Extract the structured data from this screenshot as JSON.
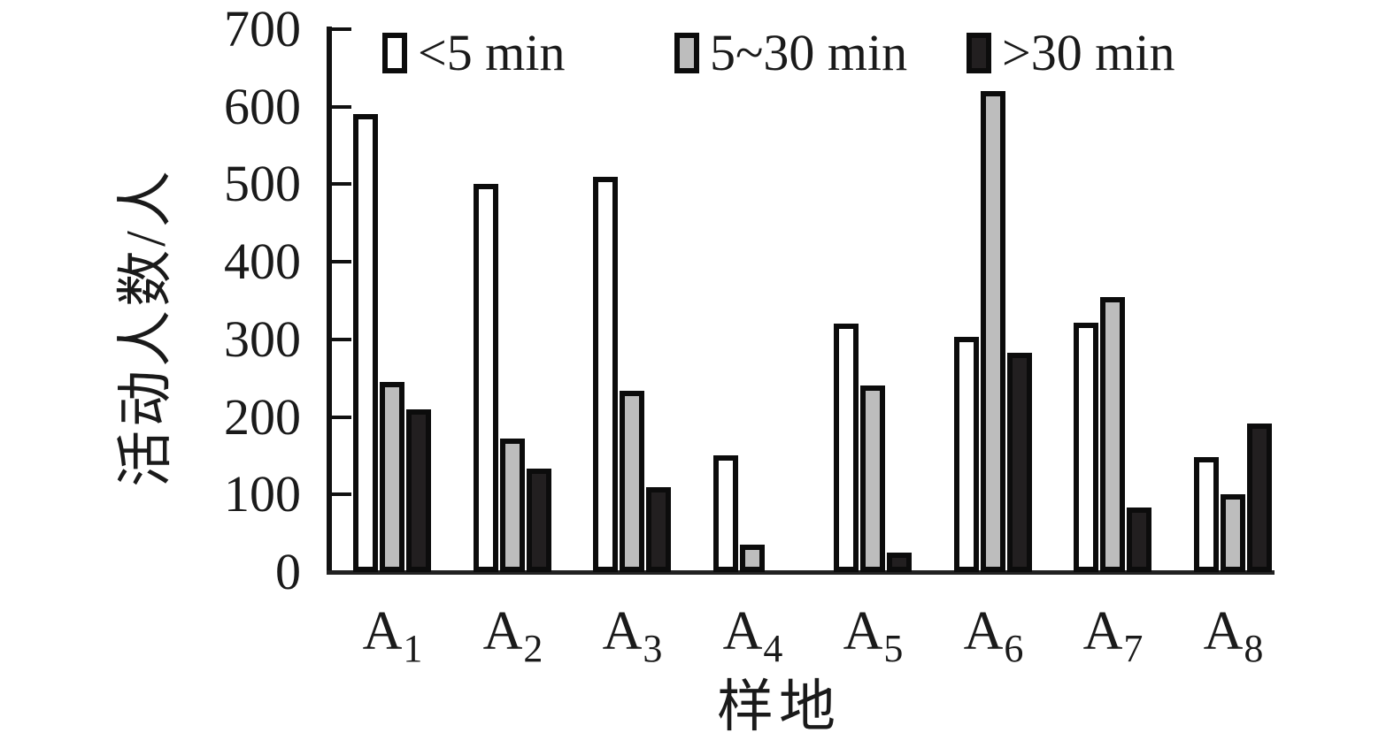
{
  "chart_data": {
    "type": "bar",
    "title": "",
    "categories": [
      "A1",
      "A2",
      "A3",
      "A4",
      "A5",
      "A6",
      "A7",
      "A8"
    ],
    "series": [
      {
        "name": "<5 min",
        "color": "#ffffff",
        "values": [
          590,
          500,
          510,
          150,
          320,
          303,
          322,
          148
        ]
      },
      {
        "name": "5~30 min",
        "color": "#bdbdbd",
        "values": [
          245,
          172,
          234,
          35,
          240,
          620,
          355,
          100
        ]
      },
      {
        "name": ">30 min",
        "color": "#221f20",
        "values": [
          210,
          133,
          110,
          0,
          25,
          283,
          83,
          192
        ]
      }
    ],
    "xlabel": "样地",
    "ylabel": "活动人数/人",
    "ylim": [
      0,
      700
    ],
    "yticks": [
      0,
      100,
      200,
      300,
      400,
      500,
      600,
      700
    ],
    "grid": false,
    "legend_position": "top",
    "bar_border_color": "#0c0c0c",
    "axis_color": "#111111",
    "background": "#ffffff"
  }
}
